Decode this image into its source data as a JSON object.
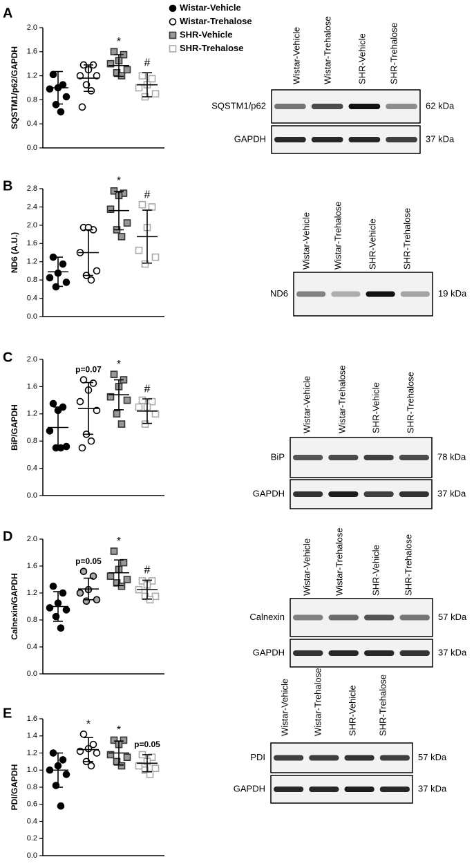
{
  "chart_data": [
    {
      "type": "dotplot",
      "panel": "A",
      "ylabel": "SQSTM1/p62/GAPDH",
      "ylim": [
        0,
        2
      ],
      "yticks": [
        {
          "value": 0,
          "label": "0.0"
        },
        0.4,
        0.8,
        1.2,
        1.6,
        {
          "value": 2,
          "label": "2.0"
        }
      ],
      "series": [
        {
          "name": "Wistar-Vehicle",
          "marker": "circle",
          "fill": "#000000",
          "color": "#000000",
          "values": [
            1.22,
            1.05,
            1.0,
            0.98,
            0.85,
            0.72,
            0.6
          ],
          "mean": 1.0,
          "sd": 0.27
        },
        {
          "name": "Wistar-Trehalose",
          "marker": "circle",
          "fill": "#ffffff",
          "color": "#000000",
          "values": [
            1.38,
            1.38,
            1.3,
            1.2,
            1.2,
            1.05,
            0.95,
            0.68
          ],
          "mean": 1.16,
          "sd": 0.22
        },
        {
          "name": "SHR-Vehicle",
          "marker": "square",
          "fill": "#999999",
          "color": "#333333",
          "values": [
            1.6,
            1.55,
            1.45,
            1.4,
            1.3,
            1.25,
            1.2
          ],
          "mean": 1.37,
          "sd": 0.18,
          "annotation": "*"
        },
        {
          "name": "SHR-Trehalose",
          "marker": "square",
          "fill": "#ffffff",
          "color": "#aaaaaa",
          "values": [
            1.2,
            1.15,
            1.05,
            1.0,
            0.9,
            0.85
          ],
          "mean": 1.05,
          "sd": 0.2,
          "annotation": "#"
        }
      ],
      "blot": {
        "lanes": [
          "Wistar-Vehicle",
          "Wistar-Trehalose",
          "SHR-Vehicle",
          "SHR-Trehalose"
        ],
        "rows": [
          {
            "protein": "SQSTM1/p62",
            "mw": "62 kDa"
          },
          {
            "protein": "GAPDH",
            "mw": "37 kDa"
          }
        ]
      }
    },
    {
      "type": "dotplot",
      "panel": "B",
      "ylabel": "ND6 (A.U.)",
      "ylim": [
        0,
        2.8
      ],
      "yticks": [
        {
          "value": 0,
          "label": "0.0"
        },
        0.4,
        0.8,
        1.2,
        1.6,
        {
          "value": 2,
          "label": "2.0"
        },
        2.4,
        2.8
      ],
      "series": [
        {
          "marker": "circle",
          "fill": "#000000",
          "color": "#000000",
          "values": [
            1.3,
            1.15,
            0.95,
            0.85,
            0.75,
            0.65
          ],
          "mean": 0.98,
          "sd": 0.32
        },
        {
          "marker": "circle",
          "fill": "#ffffff",
          "color": "#000000",
          "values": [
            1.95,
            1.9,
            1.95,
            1.4,
            1.0,
            0.9,
            0.8
          ],
          "mean": 1.4,
          "sd": 0.5
        },
        {
          "marker": "square",
          "fill": "#999999",
          "color": "#333333",
          "values": [
            2.75,
            2.7,
            2.65,
            2.35,
            2.05,
            1.9,
            1.75
          ],
          "mean": 2.32,
          "sd": 0.42,
          "annotation": "*"
        },
        {
          "marker": "square",
          "fill": "#ffffff",
          "color": "#aaaaaa",
          "values": [
            2.45,
            2.4,
            1.95,
            1.45,
            1.3,
            1.15
          ],
          "mean": 1.75,
          "sd": 0.58,
          "annotation": "#"
        }
      ],
      "blot": {
        "lanes": [
          "Wistar-Vehicle",
          "Wistar-Trehalose",
          "SHR-Vehicle",
          "SHR-Trehalose"
        ],
        "rows": [
          {
            "protein": "ND6",
            "mw": "19 kDa"
          }
        ]
      }
    },
    {
      "type": "dotplot",
      "panel": "C",
      "ylabel": "BiP/GAPDH",
      "ylim": [
        0,
        2
      ],
      "yticks": [
        {
          "value": 0,
          "label": "0.0"
        },
        0.4,
        0.8,
        1.2,
        1.6,
        {
          "value": 2,
          "label": "2.0"
        }
      ],
      "series": [
        {
          "marker": "circle",
          "fill": "#000000",
          "color": "#000000",
          "values": [
            1.35,
            1.3,
            1.25,
            0.95,
            0.72,
            0.7,
            0.7
          ],
          "mean": 1.0,
          "sd": 0.3
        },
        {
          "marker": "circle",
          "fill": "#ffffff",
          "color": "#000000",
          "values": [
            1.7,
            1.65,
            1.55,
            1.38,
            1.25,
            0.9,
            0.8,
            0.7
          ],
          "mean": 1.28,
          "sd": 0.38,
          "annotation": "p=0.07"
        },
        {
          "marker": "square",
          "fill": "#999999",
          "color": "#333333",
          "values": [
            1.78,
            1.7,
            1.6,
            1.45,
            1.4,
            1.2,
            1.05
          ],
          "mean": 1.48,
          "sd": 0.22,
          "annotation": "*"
        },
        {
          "marker": "square",
          "fill": "#ffffff",
          "color": "#aaaaaa",
          "values": [
            1.4,
            1.38,
            1.3,
            1.3,
            1.2,
            1.05
          ],
          "mean": 1.24,
          "sd": 0.18,
          "annotation": "#"
        }
      ],
      "blot": {
        "lanes": [
          "Wistar-Vehicle",
          "Wistar-Trehalose",
          "SHR-Vehicle",
          "SHR-Trehalose"
        ],
        "rows": [
          {
            "protein": "BiP",
            "mw": "78 kDa"
          },
          {
            "protein": "GAPDH",
            "mw": "37 kDa"
          }
        ]
      }
    },
    {
      "type": "dotplot",
      "panel": "D",
      "ylabel": "Calnexin/GAPDH",
      "ylim": [
        0,
        2
      ],
      "yticks": [
        {
          "value": 0,
          "label": "0.0"
        },
        0.4,
        0.8,
        1.2,
        1.6,
        {
          "value": 2,
          "label": "2.0"
        }
      ],
      "series": [
        {
          "marker": "circle",
          "fill": "#000000",
          "color": "#000000",
          "values": [
            1.3,
            1.2,
            1.05,
            0.98,
            0.95,
            0.85,
            0.68
          ],
          "mean": 1.0,
          "sd": 0.22
        },
        {
          "marker": "circle",
          "fill": "#aaaaaa",
          "color": "#000000",
          "values": [
            1.52,
            1.45,
            1.25,
            1.2,
            1.1,
            1.08
          ],
          "mean": 1.26,
          "sd": 0.16,
          "annotation": "p=0.05"
        },
        {
          "marker": "square",
          "fill": "#999999",
          "color": "#333333",
          "values": [
            1.82,
            1.65,
            1.55,
            1.45,
            1.4,
            1.35,
            1.3
          ],
          "mean": 1.5,
          "sd": 0.19,
          "annotation": "*"
        },
        {
          "marker": "square",
          "fill": "#ffffff",
          "color": "#aaaaaa",
          "values": [
            1.38,
            1.38,
            1.32,
            1.25,
            1.15,
            1.15,
            1.1
          ],
          "mean": 1.25,
          "sd": 0.14,
          "annotation": "#"
        }
      ],
      "blot": {
        "lanes": [
          "Wistar-Vehicle",
          "Wistar-Trehalose",
          "SHR-Vehicle",
          "SHR-Trehalose"
        ],
        "rows": [
          {
            "protein": "Calnexin",
            "mw": "57 kDa"
          },
          {
            "protein": "GAPDH",
            "mw": "37 kDa"
          }
        ]
      }
    },
    {
      "type": "dotplot",
      "panel": "E",
      "ylabel": "PDI/GAPDH",
      "ylim": [
        0,
        1.6
      ],
      "yticks": [
        {
          "value": 0,
          "label": "0.0"
        },
        0.2,
        0.4,
        0.6,
        0.8,
        {
          "value": 1,
          "label": "1.0"
        },
        1.2,
        1.4,
        1.6
      ],
      "series": [
        {
          "marker": "circle",
          "fill": "#000000",
          "color": "#000000",
          "values": [
            1.2,
            1.12,
            1.05,
            1.0,
            0.95,
            0.82,
            0.58
          ],
          "mean": 1.0,
          "sd": 0.2
        },
        {
          "marker": "circle",
          "fill": "#ffffff",
          "color": "#000000",
          "values": [
            1.42,
            1.3,
            1.25,
            1.22,
            1.2,
            1.1,
            1.05
          ],
          "mean": 1.24,
          "sd": 0.14,
          "annotation": "*"
        },
        {
          "marker": "square",
          "fill": "#999999",
          "color": "#333333",
          "values": [
            1.35,
            1.35,
            1.3,
            1.18,
            1.15,
            1.1,
            1.05
          ],
          "mean": 1.2,
          "sd": 0.14,
          "annotation": "*"
        },
        {
          "marker": "square",
          "fill": "#ffffff",
          "color": "#aaaaaa",
          "values": [
            1.18,
            1.15,
            1.1,
            1.05,
            1.02,
            1.0,
            0.95
          ],
          "mean": 1.08,
          "sd": 0.1,
          "annotation": "p=0.05"
        }
      ],
      "blot": {
        "lanes": [
          "Wistar-Vehicle",
          "Wistar-Trehalose",
          "SHR-Vehicle",
          "SHR-Trehalose"
        ],
        "rows": [
          {
            "protein": "PDI",
            "mw": "57 kDa"
          },
          {
            "protein": "GAPDH",
            "mw": "37 kDa"
          }
        ]
      }
    }
  ]
}
